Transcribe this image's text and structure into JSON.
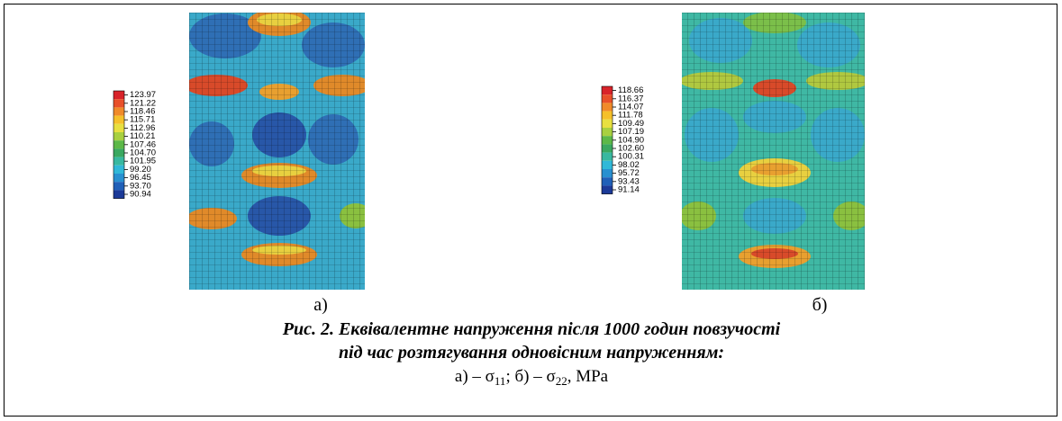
{
  "figure": {
    "panels": [
      {
        "label": "а)",
        "legend": [
          "123.97",
          "121.22",
          "118.46",
          "115.71",
          "112.96",
          "110.21",
          "107.46",
          "104.70",
          "101.95",
          "99.20",
          "96.45",
          "93.70",
          "90.94"
        ]
      },
      {
        "label": "б)",
        "legend": [
          "118.66",
          "116.37",
          "114.07",
          "111.78",
          "109.49",
          "107.19",
          "104.90",
          "102.60",
          "100.31",
          "98.02",
          "95.72",
          "93.43",
          "91.14"
        ]
      }
    ],
    "caption": {
      "line1": "Рис. 2. Еквівалентне напруження після 1000 годин повзучості",
      "line2": "під час розтягування одновісним напруженням:",
      "line3": [
        "а) – σ",
        "11",
        "; б) – σ",
        "22",
        ", MPa"
      ]
    }
  }
}
